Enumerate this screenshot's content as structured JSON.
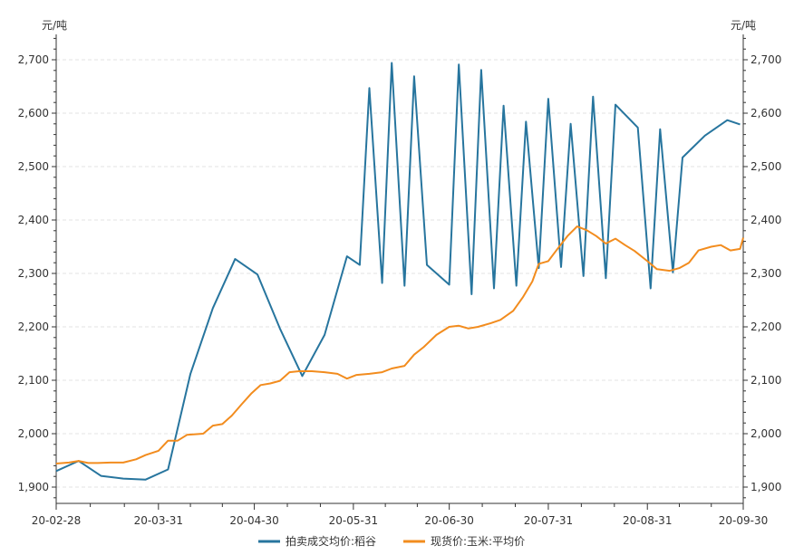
{
  "chart_data": {
    "type": "line",
    "units": {
      "left": "元/吨",
      "right": "元/吨"
    },
    "ylim": [
      1900,
      2700
    ],
    "yticks": [
      1900,
      2000,
      2100,
      2200,
      2300,
      2400,
      2500,
      2600,
      2700
    ],
    "ytick_labels": [
      "1,900",
      "2,000",
      "2,100",
      "2,200",
      "2,300",
      "2,400",
      "2,500",
      "2,600",
      "2,700"
    ],
    "xlim": [
      "2020-02-28",
      "2020-09-30"
    ],
    "x_tick_labels": [
      {
        "date": "2020-02-28",
        "label": "20-02-28"
      },
      {
        "date": "2020-03-31",
        "label": "20-03-31"
      },
      {
        "date": "2020-04-30",
        "label": "20-04-30"
      },
      {
        "date": "2020-05-31",
        "label": "20-05-31"
      },
      {
        "date": "2020-06-30",
        "label": "20-06-30"
      },
      {
        "date": "2020-07-31",
        "label": "20-07-31"
      },
      {
        "date": "2020-08-31",
        "label": "20-08-31"
      },
      {
        "date": "2020-09-30",
        "label": "20-09-30"
      }
    ],
    "grid": "horizontal-dashed",
    "legend_position": "bottom-center",
    "series": [
      {
        "name": "拍卖成交均价:稻谷",
        "color": "#27759E",
        "points": [
          [
            "2020-02-28",
            1930
          ],
          [
            "2020-03-06",
            1949
          ],
          [
            "2020-03-13",
            1921
          ],
          [
            "2020-03-20",
            1916
          ],
          [
            "2020-03-27",
            1914
          ],
          [
            "2020-04-03",
            1933
          ],
          [
            "2020-04-10",
            2112
          ],
          [
            "2020-04-17",
            2235
          ],
          [
            "2020-04-24",
            2327
          ],
          [
            "2020-05-01",
            2298
          ],
          [
            "2020-05-08",
            2197
          ],
          [
            "2020-05-15",
            2108
          ],
          [
            "2020-05-22",
            2185
          ],
          [
            "2020-05-29",
            2332
          ],
          [
            "2020-06-02",
            2316
          ],
          [
            "2020-06-05",
            2647
          ],
          [
            "2020-06-09",
            2282
          ],
          [
            "2020-06-12",
            2694
          ],
          [
            "2020-06-16",
            2277
          ],
          [
            "2020-06-19",
            2669
          ],
          [
            "2020-06-23",
            2316
          ],
          [
            "2020-06-30",
            2279
          ],
          [
            "2020-07-03",
            2691
          ],
          [
            "2020-07-07",
            2261
          ],
          [
            "2020-07-10",
            2681
          ],
          [
            "2020-07-14",
            2272
          ],
          [
            "2020-07-17",
            2614
          ],
          [
            "2020-07-21",
            2277
          ],
          [
            "2020-07-24",
            2584
          ],
          [
            "2020-07-28",
            2310
          ],
          [
            "2020-07-31",
            2627
          ],
          [
            "2020-08-04",
            2312
          ],
          [
            "2020-08-07",
            2580
          ],
          [
            "2020-08-11",
            2295
          ],
          [
            "2020-08-14",
            2631
          ],
          [
            "2020-08-18",
            2291
          ],
          [
            "2020-08-21",
            2616
          ],
          [
            "2020-08-28",
            2573
          ],
          [
            "2020-09-01",
            2272
          ],
          [
            "2020-09-04",
            2570
          ],
          [
            "2020-09-08",
            2302
          ],
          [
            "2020-09-11",
            2517
          ],
          [
            "2020-09-18",
            2558
          ],
          [
            "2020-09-25",
            2587
          ],
          [
            "2020-09-29",
            2579
          ]
        ]
      },
      {
        "name": "现货价:玉米:平均价",
        "color": "#F28C1E",
        "points": [
          [
            "2020-02-28",
            1944
          ],
          [
            "2020-03-03",
            1946
          ],
          [
            "2020-03-06",
            1949
          ],
          [
            "2020-03-09",
            1945
          ],
          [
            "2020-03-12",
            1945
          ],
          [
            "2020-03-16",
            1946
          ],
          [
            "2020-03-20",
            1946
          ],
          [
            "2020-03-24",
            1952
          ],
          [
            "2020-03-27",
            1960
          ],
          [
            "2020-03-31",
            1968
          ],
          [
            "2020-04-03",
            1987
          ],
          [
            "2020-04-06",
            1987
          ],
          [
            "2020-04-09",
            1998
          ],
          [
            "2020-04-14",
            2000
          ],
          [
            "2020-04-17",
            2015
          ],
          [
            "2020-04-20",
            2018
          ],
          [
            "2020-04-23",
            2034
          ],
          [
            "2020-04-26",
            2055
          ],
          [
            "2020-04-29",
            2075
          ],
          [
            "2020-05-02",
            2091
          ],
          [
            "2020-05-05",
            2094
          ],
          [
            "2020-05-08",
            2099
          ],
          [
            "2020-05-11",
            2115
          ],
          [
            "2020-05-14",
            2117
          ],
          [
            "2020-05-18",
            2117
          ],
          [
            "2020-05-22",
            2115
          ],
          [
            "2020-05-26",
            2112
          ],
          [
            "2020-05-29",
            2103
          ],
          [
            "2020-06-01",
            2110
          ],
          [
            "2020-06-05",
            2112
          ],
          [
            "2020-06-09",
            2115
          ],
          [
            "2020-06-12",
            2122
          ],
          [
            "2020-06-16",
            2127
          ],
          [
            "2020-06-19",
            2148
          ],
          [
            "2020-06-22",
            2162
          ],
          [
            "2020-06-26",
            2185
          ],
          [
            "2020-06-30",
            2200
          ],
          [
            "2020-07-03",
            2202
          ],
          [
            "2020-07-06",
            2197
          ],
          [
            "2020-07-09",
            2200
          ],
          [
            "2020-07-13",
            2207
          ],
          [
            "2020-07-16",
            2213
          ],
          [
            "2020-07-20",
            2230
          ],
          [
            "2020-07-23",
            2255
          ],
          [
            "2020-07-26",
            2285
          ],
          [
            "2020-07-28",
            2318
          ],
          [
            "2020-07-31",
            2323
          ],
          [
            "2020-08-03",
            2347
          ],
          [
            "2020-08-06",
            2370
          ],
          [
            "2020-08-09",
            2388
          ],
          [
            "2020-08-12",
            2381
          ],
          [
            "2020-08-15",
            2370
          ],
          [
            "2020-08-18",
            2356
          ],
          [
            "2020-08-21",
            2365
          ],
          [
            "2020-08-24",
            2353
          ],
          [
            "2020-08-27",
            2342
          ],
          [
            "2020-08-31",
            2323
          ],
          [
            "2020-09-03",
            2308
          ],
          [
            "2020-09-07",
            2305
          ],
          [
            "2020-09-10",
            2310
          ],
          [
            "2020-09-13",
            2320
          ],
          [
            "2020-09-16",
            2343
          ],
          [
            "2020-09-20",
            2350
          ],
          [
            "2020-09-23",
            2353
          ],
          [
            "2020-09-26",
            2343
          ],
          [
            "2020-09-29",
            2346
          ],
          [
            "2020-09-30",
            2367
          ]
        ]
      }
    ]
  }
}
